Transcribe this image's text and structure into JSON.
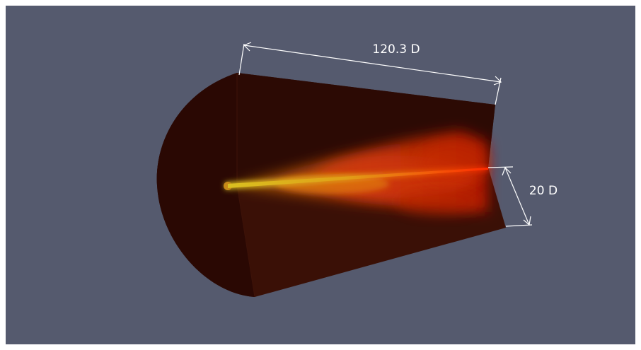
{
  "annotations": {
    "length": "120.3 D",
    "radius": "20 D"
  }
}
